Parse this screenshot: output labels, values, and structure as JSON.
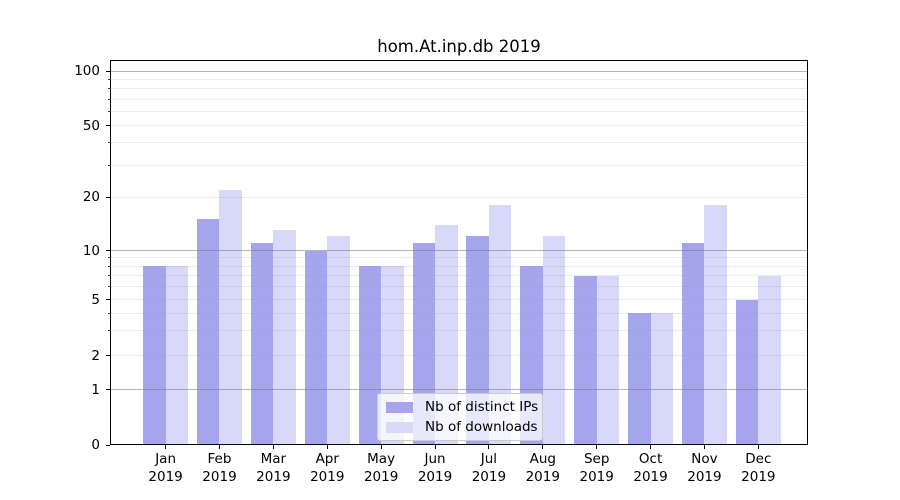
{
  "chart_data": {
    "type": "bar",
    "title": "hom.At.inp.db 2019",
    "categories": [
      "Jan",
      "Feb",
      "Mar",
      "Apr",
      "May",
      "Jun",
      "Jul",
      "Aug",
      "Sep",
      "Oct",
      "Nov",
      "Dec"
    ],
    "category_year": "2019",
    "series": [
      {
        "name": "Nb of distinct IPs",
        "key": "distinct-ips",
        "color": "#a5a5ee",
        "values": [
          8,
          15,
          11,
          10,
          8,
          11,
          12,
          8,
          7,
          4,
          11,
          5
        ]
      },
      {
        "name": "Nb of downloads",
        "key": "downloads",
        "color": "#d8d8f8",
        "values": [
          8,
          22,
          13,
          12,
          8,
          14,
          18,
          12,
          7,
          4,
          18,
          7
        ]
      }
    ],
    "xlabel": "",
    "ylabel": "",
    "yscale": "quasi-log (0,1,2,5,10,20,50,100)",
    "ylim": [
      0,
      115
    ],
    "ytick_labels": [
      "100",
      "50",
      "20",
      "10",
      "5",
      "2",
      "1",
      "0"
    ],
    "ytick_values": [
      100,
      50,
      20,
      10,
      5,
      2,
      1,
      0
    ],
    "minor_grid_values": [
      2,
      3,
      4,
      5,
      6,
      7,
      8,
      9,
      20,
      30,
      40,
      50,
      60,
      70,
      80,
      90
    ],
    "major_grid_values": [
      1,
      10,
      100
    ],
    "grid": true,
    "legend_position": "lower center"
  }
}
